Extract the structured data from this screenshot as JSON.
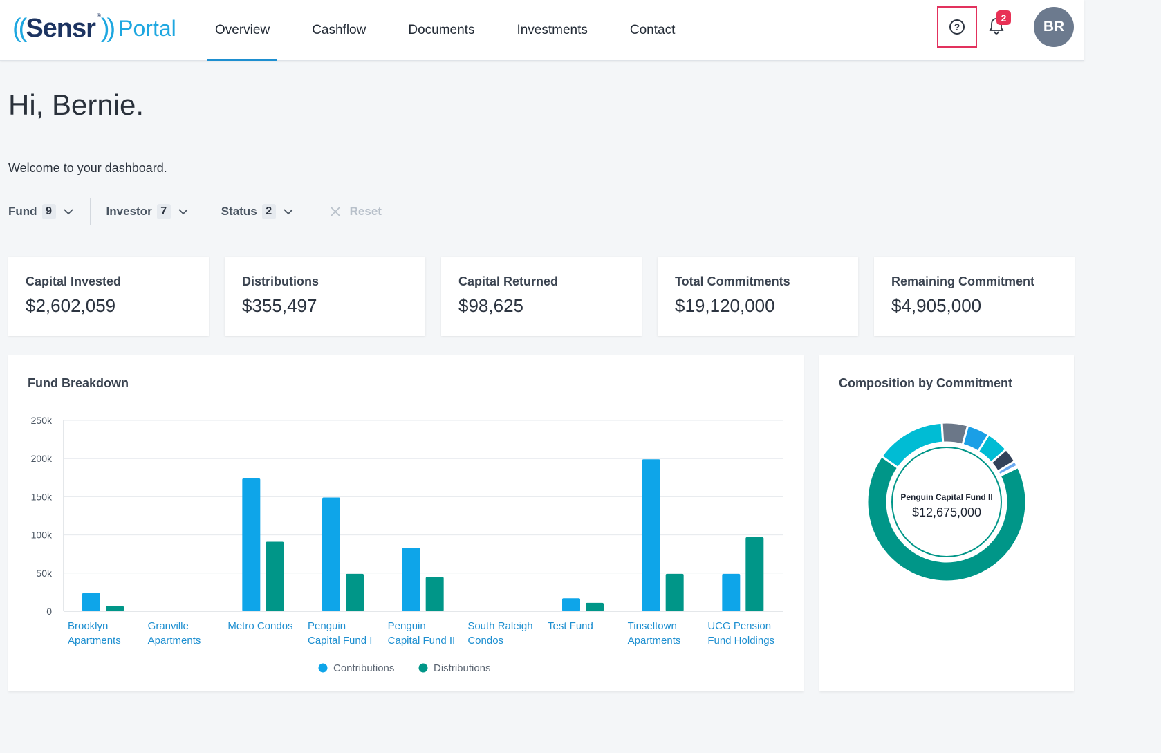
{
  "header": {
    "logo": {
      "open": "((",
      "brand": "Sensr",
      "close": "))",
      "product": "Portal",
      "reg": "®"
    },
    "nav": [
      {
        "label": "Overview",
        "active": true
      },
      {
        "label": "Cashflow",
        "active": false
      },
      {
        "label": "Documents",
        "active": false
      },
      {
        "label": "Investments",
        "active": false
      },
      {
        "label": "Contact",
        "active": false
      }
    ],
    "help_icon": "question-circle-icon",
    "bell_icon": "bell-icon",
    "notification_count": "2",
    "avatar_initials": "BR"
  },
  "greeting": "Hi, Bernie.",
  "welcome": "Welcome to your dashboard.",
  "filters": [
    {
      "label": "Fund",
      "count": "9"
    },
    {
      "label": "Investor",
      "count": "7"
    },
    {
      "label": "Status",
      "count": "2"
    }
  ],
  "reset_label": "Reset",
  "stats": [
    {
      "label": "Capital Invested",
      "value": "$2,602,059"
    },
    {
      "label": "Distributions",
      "value": "$355,497"
    },
    {
      "label": "Capital Returned",
      "value": "$98,625"
    },
    {
      "label": "Total Commitments",
      "value": "$19,120,000"
    },
    {
      "label": "Remaining Commitment",
      "value": "$4,905,000"
    }
  ],
  "fund_breakdown": {
    "title": "Fund Breakdown"
  },
  "composition": {
    "title": "Composition by Commitment",
    "center_name": "Penguin Capital Fund II",
    "center_value": "$12,675,000"
  },
  "chart_data": [
    {
      "type": "bar",
      "title": "Fund Breakdown",
      "categories": [
        [
          "Brooklyn",
          "Apartments"
        ],
        [
          "Granville",
          "Apartments"
        ],
        [
          "Metro Condos"
        ],
        [
          "Penguin",
          "Capital Fund I"
        ],
        [
          "Penguin",
          "Capital Fund II"
        ],
        [
          "South Raleigh",
          "Condos"
        ],
        [
          "Test Fund"
        ],
        [
          "Tinseltown",
          "Apartments"
        ],
        [
          "UCG Pension",
          "Fund Holdings"
        ]
      ],
      "series": [
        {
          "name": "Contributions",
          "color": "#0ea5e9",
          "values": [
            24000,
            0,
            174000,
            149000,
            83000,
            0,
            17000,
            199000,
            49000
          ]
        },
        {
          "name": "Distributions",
          "color": "#009688",
          "values": [
            7000,
            0,
            91000,
            49000,
            45000,
            0,
            11000,
            49000,
            97000
          ]
        }
      ],
      "yticks": [
        "0",
        "50k",
        "100k",
        "150k",
        "200k",
        "250k"
      ],
      "ylim": [
        0,
        250000
      ],
      "legend": "bottom-center"
    },
    {
      "type": "pie",
      "title": "Composition by Commitment",
      "slices": [
        {
          "value": 12675000,
          "color": "#009688"
        },
        {
          "value": 2700000,
          "color": "#00bcd4"
        },
        {
          "value": 1000000,
          "color": "#6b7788"
        },
        {
          "value": 860000,
          "color": "#1a9fe6"
        },
        {
          "value": 870000,
          "color": "#00bcd4"
        },
        {
          "value": 560000,
          "color": "#33425a"
        },
        {
          "value": 200000,
          "color": "#6aa9f0"
        },
        {
          "value": 50000,
          "color": "#ffffff"
        }
      ]
    }
  ]
}
